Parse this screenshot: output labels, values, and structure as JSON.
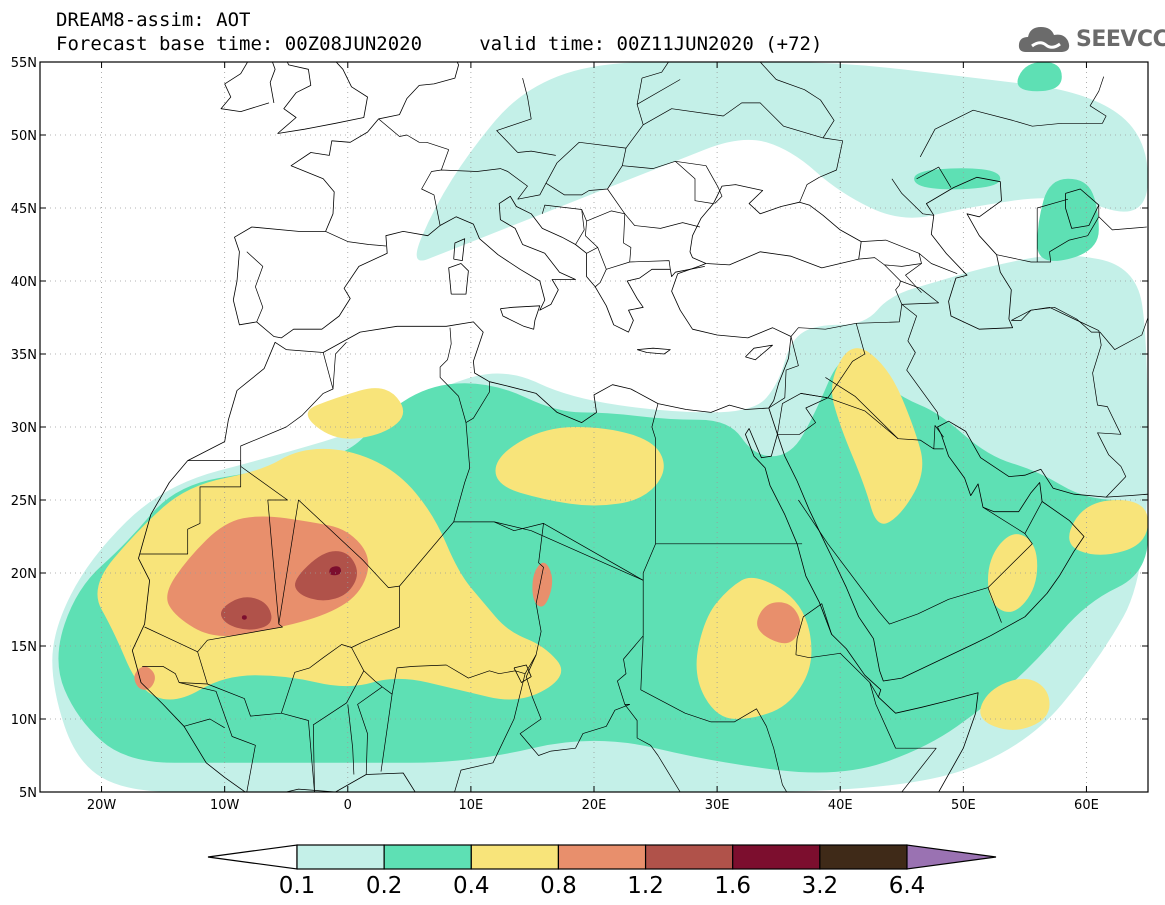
{
  "header": {
    "title_line1": "DREAM8-assim: AOT",
    "title_line2": "Forecast base time: 00Z08JUN2020     valid time: 00Z11JUN2020 (+72)"
  },
  "logo": {
    "text": "SEEVCCC",
    "icon": "cloud-icon"
  },
  "chart_data": {
    "type": "heatmap",
    "variable": "AOT",
    "lon_range": [
      -25,
      65
    ],
    "lat_range": [
      5,
      55
    ],
    "x_ticks": [
      {
        "v": -20,
        "label": "20W"
      },
      {
        "v": -10,
        "label": "10W"
      },
      {
        "v": 0,
        "label": "0"
      },
      {
        "v": 10,
        "label": "10E"
      },
      {
        "v": 20,
        "label": "20E"
      },
      {
        "v": 30,
        "label": "30E"
      },
      {
        "v": 40,
        "label": "40E"
      },
      {
        "v": 50,
        "label": "50E"
      },
      {
        "v": 60,
        "label": "60E"
      }
    ],
    "y_ticks": [
      {
        "v": 5,
        "label": "5N"
      },
      {
        "v": 10,
        "label": "10N"
      },
      {
        "v": 15,
        "label": "15N"
      },
      {
        "v": 20,
        "label": "20N"
      },
      {
        "v": 25,
        "label": "25N"
      },
      {
        "v": 30,
        "label": "30N"
      },
      {
        "v": 35,
        "label": "35N"
      },
      {
        "v": 40,
        "label": "40N"
      },
      {
        "v": 45,
        "label": "45N"
      },
      {
        "v": 50,
        "label": "50N"
      },
      {
        "v": 55,
        "label": "55N"
      }
    ],
    "grid": true,
    "levels": [
      "0.1",
      "0.2",
      "0.4",
      "0.8",
      "1.2",
      "1.6",
      "3.2",
      "6.4"
    ],
    "colors": [
      "#ffffff",
      "#c4f0e8",
      "#5ee0b4",
      "#f8e47a",
      "#e88f6c",
      "#b0524a",
      "#7c0e2e",
      "#3f2a18",
      "#9a72b2"
    ],
    "regions": [
      {
        "level": 1,
        "pts": [
          [
            -22,
            7
          ],
          [
            -24,
            12
          ],
          [
            -24,
            16
          ],
          [
            -21,
            21
          ],
          [
            -15,
            26
          ],
          [
            -6,
            28
          ],
          [
            2,
            30
          ],
          [
            8,
            33
          ],
          [
            13,
            34
          ],
          [
            18,
            32
          ],
          [
            26,
            31
          ],
          [
            33,
            31
          ],
          [
            35,
            33
          ],
          [
            36,
            36
          ],
          [
            38,
            37
          ],
          [
            42,
            37
          ],
          [
            44,
            39
          ],
          [
            48,
            40
          ],
          [
            52,
            41
          ],
          [
            58,
            42
          ],
          [
            64,
            41
          ],
          [
            65,
            36
          ],
          [
            65,
            20
          ],
          [
            61,
            14
          ],
          [
            55,
            8
          ],
          [
            45,
            5
          ],
          [
            20,
            5
          ],
          [
            5,
            5
          ],
          [
            -10,
            5
          ],
          [
            -18,
            5
          ]
        ]
      },
      {
        "level": 1,
        "pts": [
          [
            5,
            41
          ],
          [
            7,
            45
          ],
          [
            10,
            49
          ],
          [
            14,
            53
          ],
          [
            20,
            55
          ],
          [
            30,
            55
          ],
          [
            40,
            55
          ],
          [
            50,
            54
          ],
          [
            60,
            53
          ],
          [
            65,
            50
          ],
          [
            65,
            44
          ],
          [
            58,
            46
          ],
          [
            50,
            45
          ],
          [
            45,
            44
          ],
          [
            40,
            46
          ],
          [
            36,
            49
          ],
          [
            32,
            50
          ],
          [
            26,
            48
          ],
          [
            20,
            46
          ],
          [
            14,
            44
          ],
          [
            8,
            42
          ]
        ]
      },
      {
        "level": 2,
        "pts": [
          [
            -22,
            10
          ],
          [
            -24,
            14
          ],
          [
            -22,
            19
          ],
          [
            -18,
            22
          ],
          [
            -14,
            26
          ],
          [
            -7,
            27
          ],
          [
            0,
            28
          ],
          [
            3,
            31
          ],
          [
            7,
            33
          ],
          [
            12,
            33
          ],
          [
            17,
            31
          ],
          [
            21,
            31
          ],
          [
            26,
            30.5
          ],
          [
            31,
            30.5
          ],
          [
            33,
            28
          ],
          [
            36,
            28
          ],
          [
            38,
            31
          ],
          [
            40,
            35
          ],
          [
            42,
            34
          ],
          [
            45,
            32
          ],
          [
            48,
            31
          ],
          [
            52,
            28
          ],
          [
            56,
            27
          ],
          [
            60,
            25
          ],
          [
            65,
            25
          ],
          [
            65,
            20
          ],
          [
            60,
            18
          ],
          [
            56,
            14
          ],
          [
            52,
            11
          ],
          [
            47,
            8
          ],
          [
            40,
            6
          ],
          [
            30,
            7
          ],
          [
            20,
            9
          ],
          [
            10,
            7
          ],
          [
            0,
            7
          ],
          [
            -10,
            7
          ],
          [
            -18,
            7
          ]
        ]
      },
      {
        "level": 2,
        "pts": [
          [
            56,
            41
          ],
          [
            56,
            44
          ],
          [
            57,
            47
          ],
          [
            60,
            47
          ],
          [
            61,
            45
          ],
          [
            61,
            42
          ]
        ]
      },
      {
        "level": 2,
        "pts": [
          [
            46,
            47.5
          ],
          [
            50,
            47.8
          ],
          [
            53,
            47.5
          ],
          [
            53,
            46.5
          ],
          [
            49,
            46.2
          ],
          [
            46,
            46.5
          ]
        ]
      },
      {
        "level": 2,
        "pts": [
          [
            54,
            53
          ],
          [
            55,
            55
          ],
          [
            58,
            55
          ],
          [
            58,
            53
          ]
        ]
      },
      {
        "level": 3,
        "pts": [
          [
            -19,
            16
          ],
          [
            -21,
            19
          ],
          [
            -17,
            23
          ],
          [
            -13,
            26
          ],
          [
            -7,
            27
          ],
          [
            -4,
            28.5
          ],
          [
            0,
            28.5
          ],
          [
            4,
            27
          ],
          [
            7,
            24
          ],
          [
            9,
            20
          ],
          [
            11,
            18
          ],
          [
            13,
            16
          ],
          [
            16,
            15
          ],
          [
            18,
            13
          ],
          [
            14,
            11
          ],
          [
            9,
            12
          ],
          [
            4,
            13
          ],
          [
            0,
            12
          ],
          [
            -5,
            13
          ],
          [
            -10,
            13
          ],
          [
            -14,
            11
          ],
          [
            -17,
            12
          ]
        ]
      },
      {
        "level": 3,
        "pts": [
          [
            12,
            28
          ],
          [
            16,
            30
          ],
          [
            21,
            30
          ],
          [
            25,
            29
          ],
          [
            26,
            27
          ],
          [
            24,
            25
          ],
          [
            20,
            24.5
          ],
          [
            16,
            25
          ],
          [
            12,
            26
          ]
        ]
      },
      {
        "level": 3,
        "pts": [
          [
            -4,
            31
          ],
          [
            -1,
            32
          ],
          [
            3,
            33
          ],
          [
            5,
            31
          ],
          [
            3,
            29.5
          ],
          [
            -1,
            29
          ]
        ]
      },
      {
        "level": 3,
        "pts": [
          [
            39,
            33
          ],
          [
            41,
            36
          ],
          [
            44,
            34
          ],
          [
            46,
            30
          ],
          [
            47,
            27
          ],
          [
            45,
            24
          ],
          [
            43,
            23
          ],
          [
            42,
            26
          ],
          [
            40,
            30
          ]
        ]
      },
      {
        "level": 3,
        "pts": [
          [
            28,
            13
          ],
          [
            29,
            17
          ],
          [
            31,
            19
          ],
          [
            33,
            20
          ],
          [
            37,
            18
          ],
          [
            38,
            14
          ],
          [
            36,
            11
          ],
          [
            33,
            10
          ],
          [
            30,
            10
          ]
        ]
      },
      {
        "level": 3,
        "pts": [
          [
            58,
            22
          ],
          [
            60,
            25
          ],
          [
            65,
            25
          ],
          [
            65,
            22
          ],
          [
            61,
            21
          ]
        ]
      },
      {
        "level": 3,
        "pts": [
          [
            51,
            10
          ],
          [
            52,
            12
          ],
          [
            55,
            13
          ],
          [
            57,
            12
          ],
          [
            57,
            10
          ],
          [
            54,
            9
          ]
        ]
      },
      {
        "level": 3,
        "pts": [
          [
            52,
            18
          ],
          [
            52,
            21
          ],
          [
            54,
            23
          ],
          [
            56,
            22
          ],
          [
            56,
            19
          ],
          [
            54,
            17
          ]
        ]
      },
      {
        "level": 4,
        "pts": [
          [
            -14,
            17
          ],
          [
            -15,
            18.5
          ],
          [
            -13,
            21
          ],
          [
            -10,
            23.5
          ],
          [
            -7,
            24
          ],
          [
            -3,
            23.5
          ],
          [
            0,
            23
          ],
          [
            2,
            21
          ],
          [
            1,
            18.5
          ],
          [
            -2,
            17
          ],
          [
            -7,
            16
          ],
          [
            -11,
            15.5
          ]
        ]
      },
      {
        "level": 4,
        "pts": [
          [
            34,
            15.5
          ],
          [
            33,
            16.5
          ],
          [
            34,
            18
          ],
          [
            36,
            18
          ],
          [
            37,
            16.5
          ],
          [
            36,
            15
          ]
        ]
      },
      {
        "level": 4,
        "pts": [
          [
            -17,
            12
          ],
          [
            -17.5,
            13
          ],
          [
            -16.5,
            13.8
          ],
          [
            -15.5,
            13
          ],
          [
            -16,
            12
          ]
        ]
      },
      {
        "level": 4,
        "pts": [
          [
            15,
            18
          ],
          [
            15,
            20
          ],
          [
            16,
            21
          ],
          [
            16.8,
            19.5
          ],
          [
            16,
            17.5
          ]
        ]
      },
      {
        "level": 5,
        "pts": [
          [
            -10,
            16.5
          ],
          [
            -10.5,
            17.5
          ],
          [
            -8.5,
            18.5
          ],
          [
            -6.5,
            18
          ],
          [
            -6,
            16.5
          ],
          [
            -8,
            16
          ]
        ]
      },
      {
        "level": 5,
        "pts": [
          [
            -4,
            18.5
          ],
          [
            -4.5,
            19.5
          ],
          [
            -2,
            21.5
          ],
          [
            0,
            21.5
          ],
          [
            1,
            20
          ],
          [
            0,
            18.5
          ],
          [
            -2,
            18
          ]
        ]
      },
      {
        "level": 6,
        "pts": [
          [
            -1.5,
            19.8
          ],
          [
            -1.5,
            20.4
          ],
          [
            -0.6,
            20.5
          ],
          [
            -0.5,
            19.9
          ]
        ]
      },
      {
        "level": 6,
        "pts": [
          [
            -8.6,
            16.8
          ],
          [
            -8.6,
            17.1
          ],
          [
            -8.2,
            17.1
          ],
          [
            -8.2,
            16.8
          ]
        ]
      }
    ]
  },
  "colorbar": {
    "labels": [
      "0.1",
      "0.2",
      "0.4",
      "0.8",
      "1.2",
      "1.6",
      "3.2",
      "6.4"
    ]
  }
}
